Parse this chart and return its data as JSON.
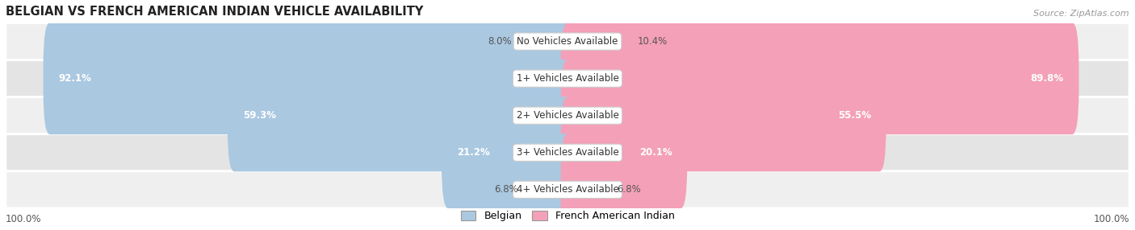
{
  "title": "BELGIAN VS FRENCH AMERICAN INDIAN VEHICLE AVAILABILITY",
  "source": "Source: ZipAtlas.com",
  "categories": [
    "No Vehicles Available",
    "1+ Vehicles Available",
    "2+ Vehicles Available",
    "3+ Vehicles Available",
    "4+ Vehicles Available"
  ],
  "belgian_values": [
    8.0,
    92.1,
    59.3,
    21.2,
    6.8
  ],
  "french_values": [
    10.4,
    89.8,
    55.5,
    20.1,
    6.8
  ],
  "belgian_color": "#6baed6",
  "french_color": "#f768a1",
  "belgian_light": "#aac8e0",
  "french_light": "#f4a0b8",
  "row_bg_colors": [
    "#efefef",
    "#e4e4e4"
  ],
  "max_value": 100.0,
  "bar_height": 0.62,
  "label_fontsize": 8.5,
  "title_fontsize": 10.5,
  "legend_fontsize": 9,
  "source_fontsize": 8
}
